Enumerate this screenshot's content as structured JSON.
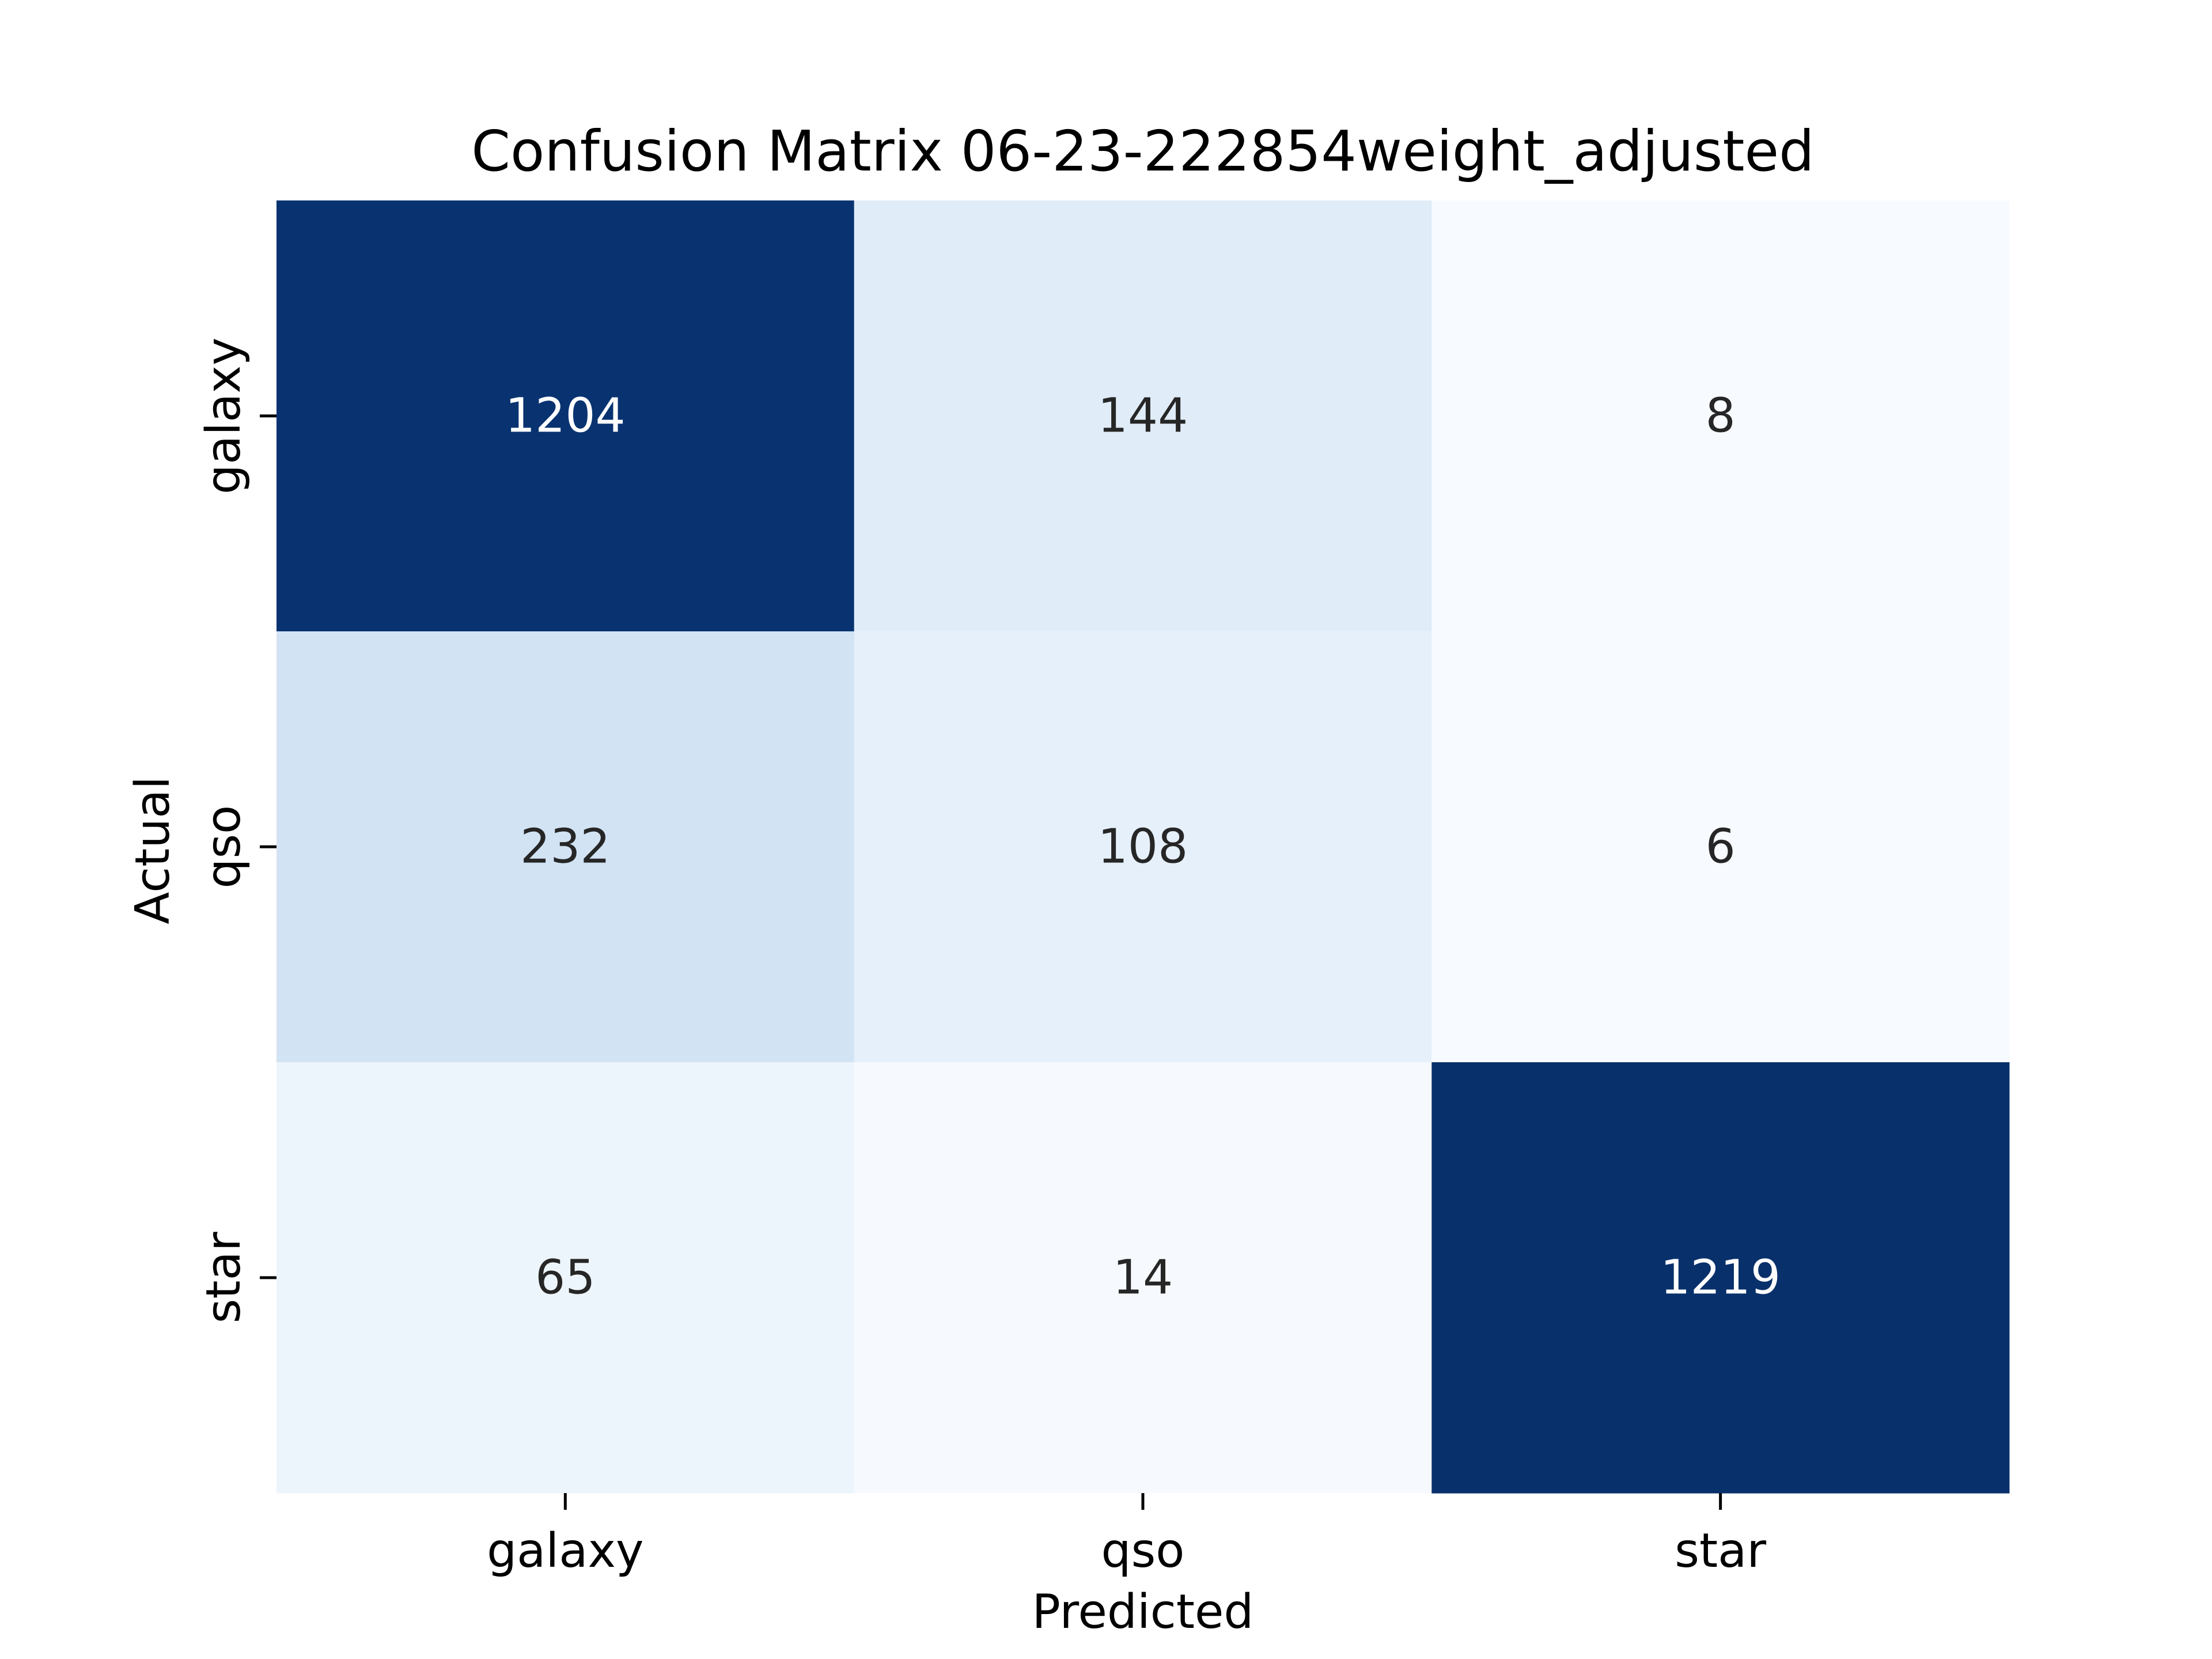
{
  "chart_data": {
    "type": "heatmap",
    "title": "Confusion Matrix 06-23-222854weight_adjusted",
    "xlabel": "Predicted",
    "ylabel": "Actual",
    "x_categories": [
      "galaxy",
      "qso",
      "star"
    ],
    "y_categories": [
      "galaxy",
      "qso",
      "star"
    ],
    "values": [
      [
        1204,
        144,
        8
      ],
      [
        232,
        108,
        6
      ],
      [
        65,
        14,
        1219
      ]
    ],
    "colormap": "Blues",
    "colormap_stops": [
      "#f7fbff",
      "#deebf7",
      "#c6dbef",
      "#9ecae1",
      "#6baed6",
      "#4292c6",
      "#2171b5",
      "#08519c",
      "#08306b"
    ],
    "text_color_light": "#ffffff",
    "text_color_dark": "#262626",
    "colorbar": false,
    "grid": false
  }
}
